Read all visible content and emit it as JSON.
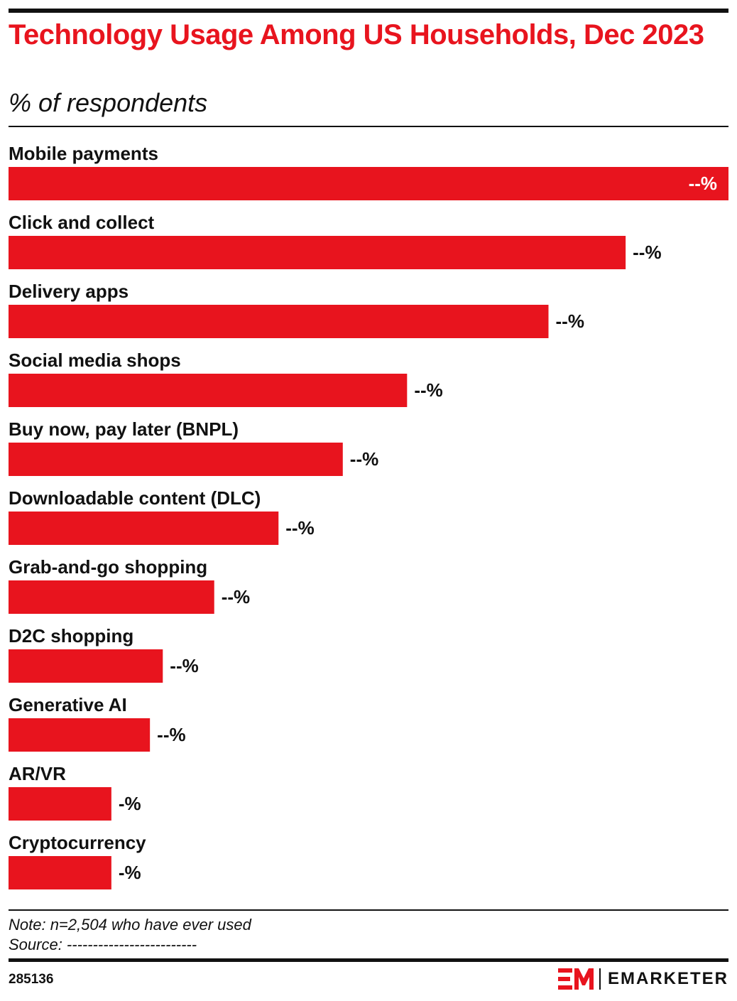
{
  "header": {
    "title": "Technology Usage Among US Households, Dec 2023",
    "subtitle": "% of respondents"
  },
  "footer": {
    "note": "Note: n=2,504 who have ever used",
    "source": "Source: -------------------------",
    "chart_id": "285136",
    "brand": "EMARKETER"
  },
  "colors": {
    "bar": "#e8141e",
    "title": "#e8141e",
    "text": "#111111"
  },
  "chart_data": {
    "type": "bar",
    "orientation": "horizontal",
    "title": "Technology Usage Among US Households, Dec 2023",
    "subtitle": "% of respondents",
    "categories": [
      "Mobile payments",
      "Click and collect",
      "Delivery apps",
      "Social media shops",
      "Buy now, pay later (BNPL)",
      "Downloadable content (DLC)",
      "Grab-and-go shopping",
      "D2C shopping",
      "Generative AI",
      "AR/VR",
      "Cryptocurrency"
    ],
    "values": [
      56,
      48,
      42,
      31,
      26,
      21,
      16,
      12,
      11,
      8,
      8
    ],
    "value_labels": [
      "--%",
      "--%",
      "--%",
      "--%",
      "--%",
      "--%",
      "--%",
      "--%",
      "--%",
      "-%",
      "-%"
    ],
    "xlim": [
      0,
      56
    ],
    "grid": false,
    "legend": "none"
  }
}
